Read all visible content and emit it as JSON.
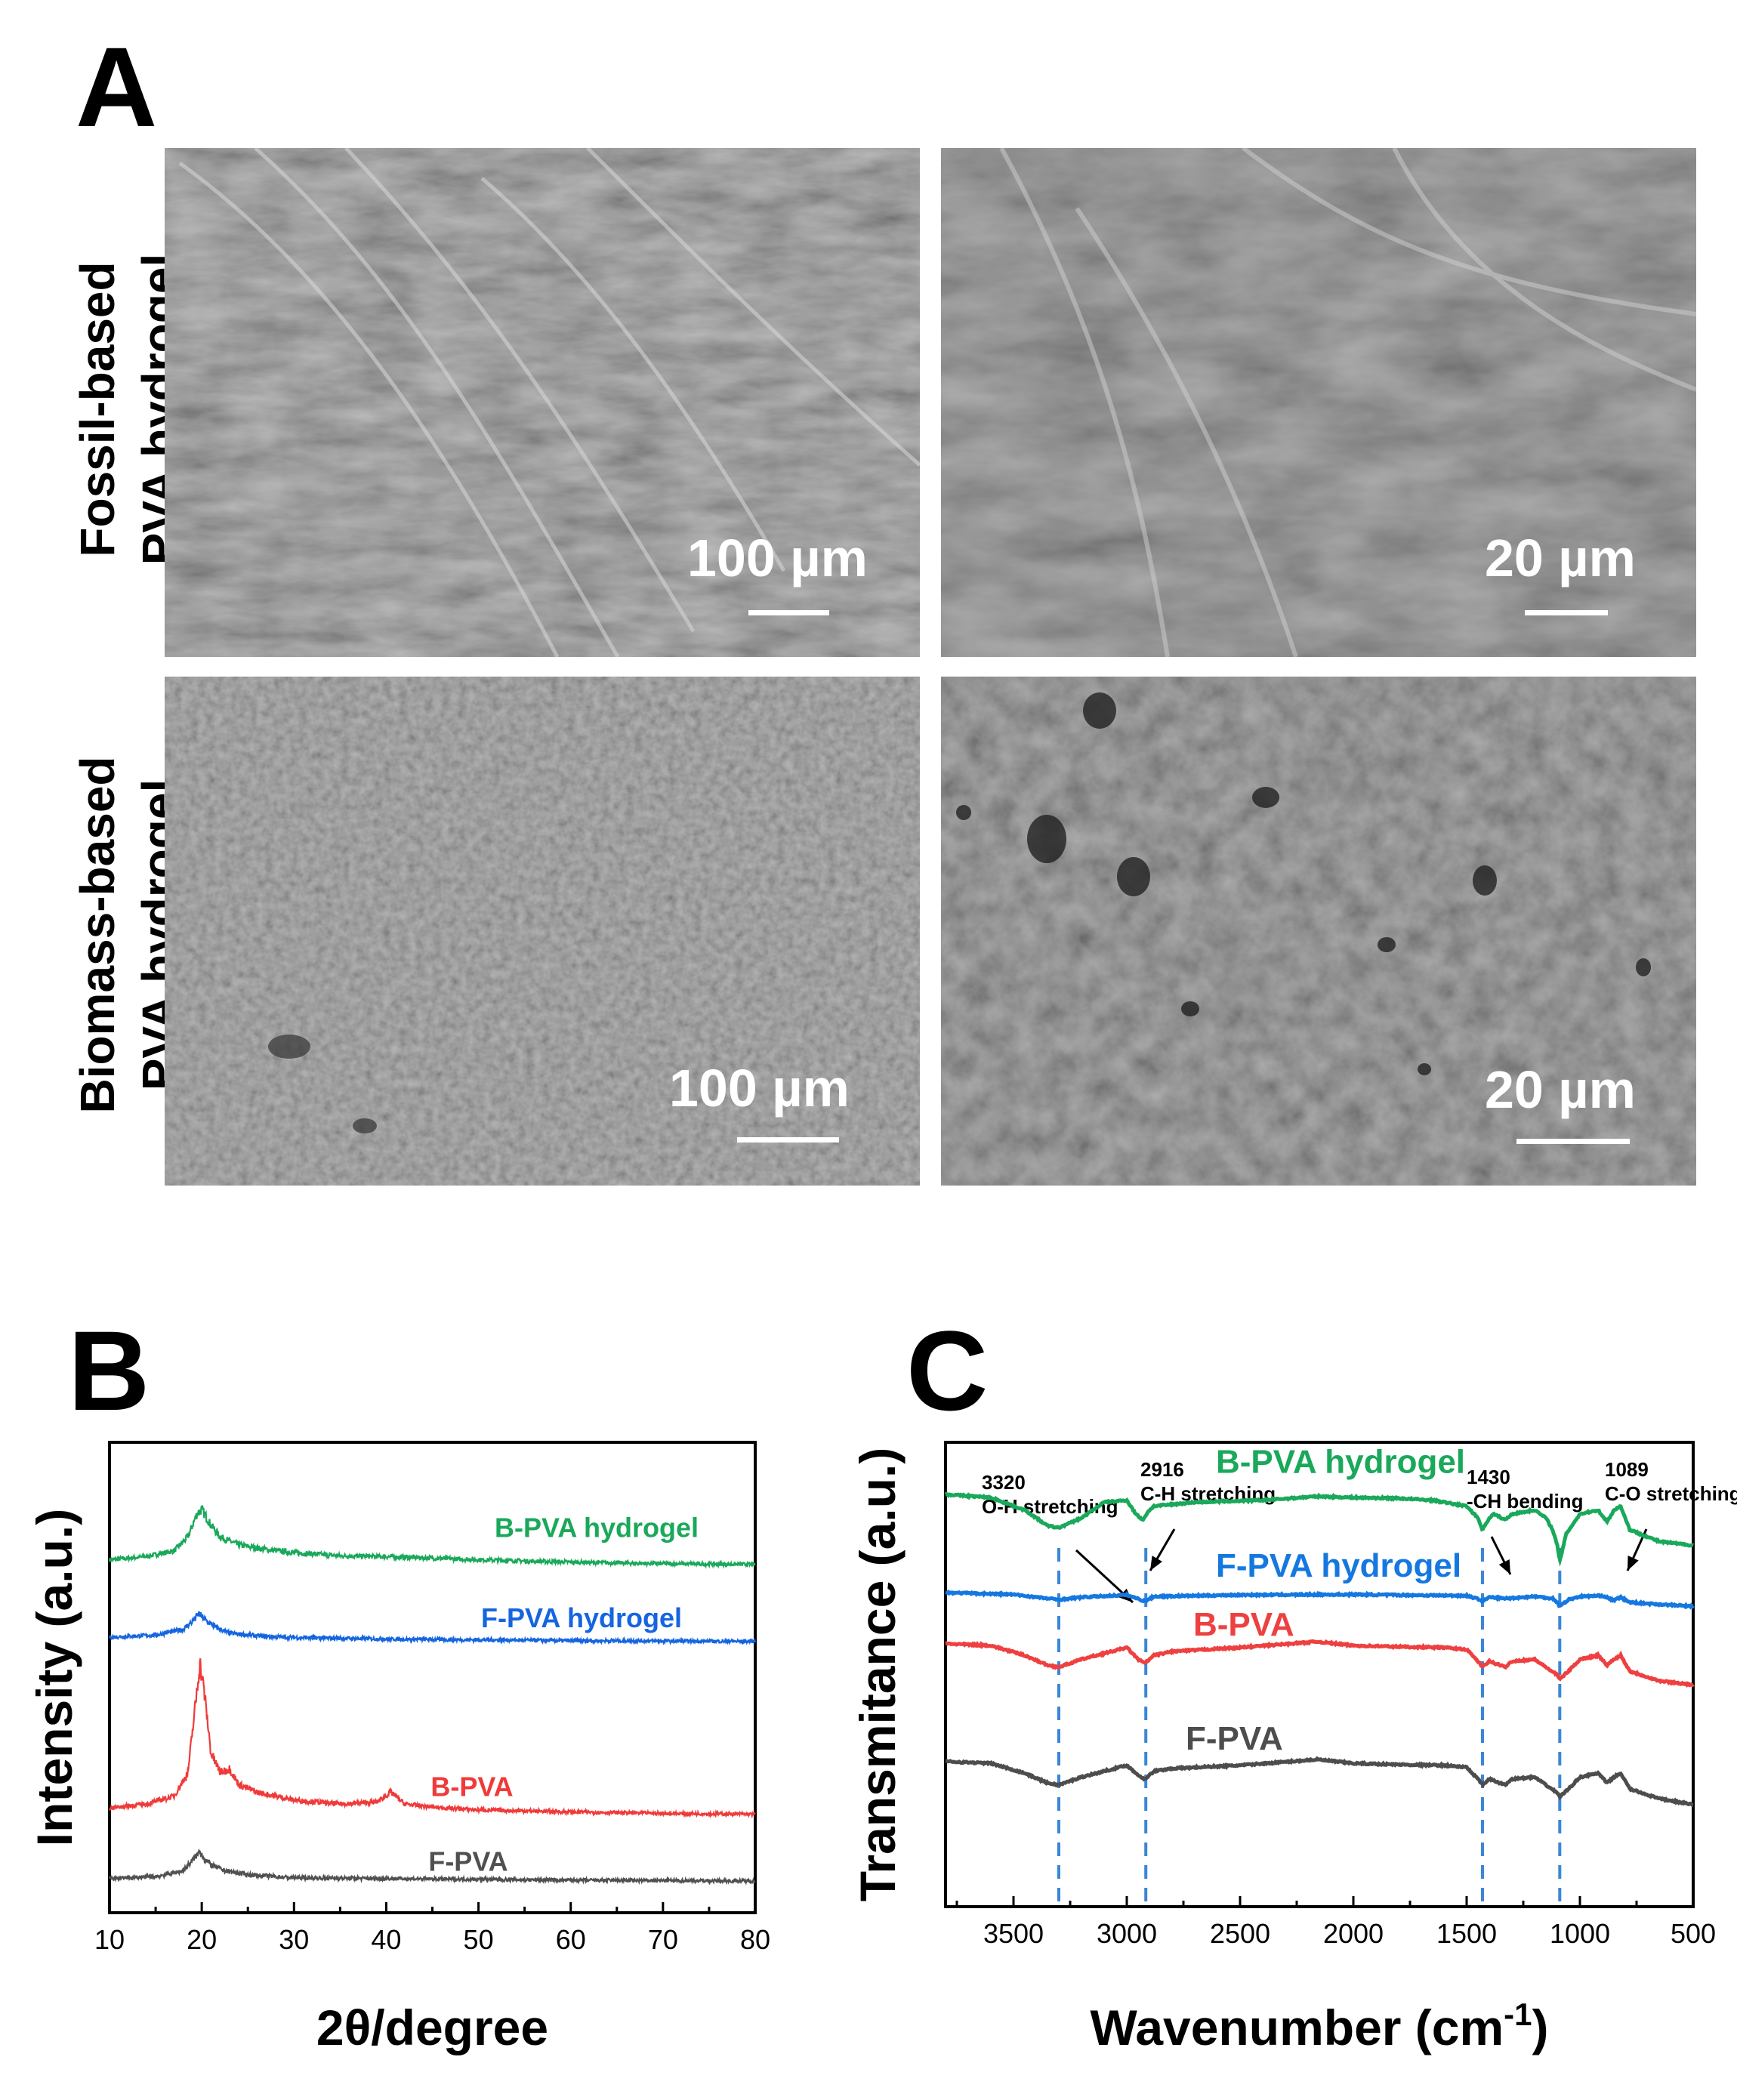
{
  "panel_a": {
    "letter": "A",
    "rows": [
      {
        "label_line1": "Fossil-based",
        "label_line2": "PVA hydrogel"
      },
      {
        "label_line1": "Biomass-based",
        "label_line2": "PVA hydrogel"
      }
    ],
    "images": [
      {
        "scale_label": "100 µm",
        "tone": "#7a7a7a"
      },
      {
        "scale_label": "20 µm",
        "tone": "#6d6d6d"
      },
      {
        "scale_label": "100 µm",
        "tone": "#868686"
      },
      {
        "scale_label": "20 µm",
        "tone": "#6a6a6a"
      }
    ]
  },
  "panel_b": {
    "letter": "B"
  },
  "panel_c": {
    "letter": "C"
  },
  "chart_data": [
    {
      "type": "line",
      "panel": "B",
      "xlabel": "2θ/degree",
      "ylabel": "Intensity (a.u.)",
      "xlim": [
        10,
        80
      ],
      "xticks": [
        10,
        20,
        30,
        40,
        50,
        60,
        70,
        80
      ],
      "grid": false,
      "series": [
        {
          "name": "B-PVA hydrogel",
          "color": "#1aa85a",
          "offset": 0.8,
          "x": [
            10,
            14,
            17,
            18.5,
            19.5,
            20,
            21,
            22,
            24,
            27,
            30,
            35,
            40,
            45,
            50,
            60,
            70,
            80
          ],
          "y": [
            0.022,
            0.03,
            0.045,
            0.08,
            0.14,
            0.15,
            0.11,
            0.08,
            0.06,
            0.048,
            0.04,
            0.032,
            0.03,
            0.026,
            0.022,
            0.016,
            0.012,
            0.01
          ]
        },
        {
          "name": "F-PVA hydrogel",
          "color": "#1565e0",
          "offset": 0.61,
          "x": [
            10,
            15,
            18,
            19,
            19.7,
            20.3,
            21.5,
            23,
            26,
            30,
            40,
            50,
            60,
            70,
            80
          ],
          "y": [
            0.015,
            0.02,
            0.035,
            0.055,
            0.075,
            0.06,
            0.04,
            0.025,
            0.018,
            0.014,
            0.01,
            0.008,
            0.006,
            0.005,
            0.004
          ]
        },
        {
          "name": "B-PVA",
          "color": "#f03a3a",
          "offset": 0.17,
          "x": [
            10,
            14,
            17,
            18.5,
            19.3,
            19.8,
            20.3,
            21,
            22,
            23,
            24,
            26,
            28,
            30,
            35,
            39,
            40.5,
            42,
            45,
            50,
            60,
            70,
            80
          ],
          "y": [
            0.02,
            0.03,
            0.05,
            0.11,
            0.28,
            0.39,
            0.31,
            0.16,
            0.11,
            0.12,
            0.08,
            0.06,
            0.05,
            0.04,
            0.03,
            0.035,
            0.06,
            0.03,
            0.022,
            0.015,
            0.01,
            0.006,
            0.004
          ]
        },
        {
          "name": "F-PVA",
          "color": "#505050",
          "offset": 0.0,
          "x": [
            10,
            15,
            18,
            19.3,
            19.8,
            20.3,
            21,
            22.5,
            25,
            30,
            40,
            50,
            60,
            70,
            80
          ],
          "y": [
            0.01,
            0.015,
            0.03,
            0.065,
            0.08,
            0.06,
            0.045,
            0.03,
            0.02,
            0.012,
            0.01,
            0.008,
            0.006,
            0.005,
            0.004
          ]
        }
      ]
    },
    {
      "type": "line",
      "panel": "C",
      "xlabel": "Wavenumber (cm",
      "xlabel_sup": "-1",
      "xlabel_end": ")",
      "ylabel": "Transmitance (a.u.)",
      "xlim": [
        3800,
        500
      ],
      "xticks": [
        3500,
        3000,
        2500,
        2000,
        1500,
        1000,
        500
      ],
      "grid": false,
      "annotations": [
        {
          "x": 3300,
          "line1": "3320",
          "line2": "O-H stretching"
        },
        {
          "x": 2916,
          "line1": "2916",
          "line2": "C-H stretching"
        },
        {
          "x": 1430,
          "line1": "1430",
          "line2": "-CH bending"
        },
        {
          "x": 1089,
          "line1": "1089",
          "line2": "C-O stretching"
        }
      ],
      "series": [
        {
          "name": "B-PVA hydrogel",
          "color": "#1aa85a",
          "offset": 0.8,
          "x": [
            3800,
            3600,
            3450,
            3350,
            3300,
            3200,
            3100,
            3000,
            2960,
            2930,
            2900,
            2880,
            2700,
            2400,
            2160,
            2000,
            1800,
            1650,
            1500,
            1450,
            1430,
            1400,
            1380,
            1330,
            1300,
            1200,
            1150,
            1120,
            1100,
            1089,
            1060,
            1000,
            920,
            880,
            850,
            820,
            780,
            650,
            500
          ],
          "y": [
            0.0,
            -0.008,
            -0.04,
            -0.08,
            -0.085,
            -0.06,
            -0.02,
            -0.015,
            -0.05,
            -0.065,
            -0.04,
            -0.03,
            -0.02,
            -0.015,
            -0.005,
            -0.008,
            -0.01,
            -0.015,
            -0.03,
            -0.06,
            -0.09,
            -0.06,
            -0.05,
            -0.065,
            -0.05,
            -0.04,
            -0.06,
            -0.09,
            -0.13,
            -0.17,
            -0.1,
            -0.05,
            -0.04,
            -0.07,
            -0.04,
            -0.03,
            -0.09,
            -0.12,
            -0.13
          ]
        },
        {
          "name": "F-PVA hydrogel",
          "color": "#1578e0",
          "offset": 0.55,
          "x": [
            3800,
            3500,
            3350,
            3300,
            3200,
            3000,
            2940,
            2920,
            2880,
            2500,
            2000,
            1500,
            1440,
            1430,
            1400,
            1330,
            1200,
            1120,
            1100,
            1089,
            1050,
            1000,
            900,
            850,
            820,
            780,
            650,
            500
          ],
          "y": [
            0.0,
            -0.005,
            -0.015,
            -0.018,
            -0.012,
            -0.006,
            -0.018,
            -0.022,
            -0.01,
            -0.006,
            -0.005,
            -0.008,
            -0.018,
            -0.022,
            -0.012,
            -0.015,
            -0.01,
            -0.015,
            -0.025,
            -0.035,
            -0.018,
            -0.01,
            -0.008,
            -0.02,
            -0.012,
            -0.025,
            -0.03,
            -0.035
          ]
        },
        {
          "name": "B-PVA",
          "color": "#ee4040",
          "offset": 0.42,
          "x": [
            3800,
            3600,
            3450,
            3350,
            3300,
            3200,
            3000,
            2950,
            2920,
            2880,
            2800,
            2500,
            2160,
            2000,
            1800,
            1600,
            1500,
            1450,
            1430,
            1400,
            1330,
            1300,
            1200,
            1150,
            1100,
            1089,
            1050,
            1000,
            920,
            880,
            850,
            820,
            780,
            650,
            500
          ],
          "y": [
            0.0,
            -0.005,
            -0.03,
            -0.055,
            -0.06,
            -0.04,
            -0.01,
            -0.04,
            -0.05,
            -0.03,
            -0.02,
            -0.01,
            0.005,
            -0.005,
            -0.008,
            -0.01,
            -0.015,
            -0.045,
            -0.06,
            -0.045,
            -0.06,
            -0.045,
            -0.04,
            -0.06,
            -0.08,
            -0.09,
            -0.07,
            -0.04,
            -0.03,
            -0.055,
            -0.04,
            -0.03,
            -0.07,
            -0.095,
            -0.105
          ]
        },
        {
          "name": "F-PVA",
          "color": "#4d4d4d",
          "offset": 0.12,
          "x": [
            3800,
            3600,
            3450,
            3350,
            3300,
            3200,
            3000,
            2950,
            2920,
            2880,
            2800,
            2500,
            2160,
            2000,
            1800,
            1600,
            1500,
            1450,
            1430,
            1400,
            1330,
            1300,
            1200,
            1150,
            1100,
            1089,
            1050,
            1000,
            920,
            880,
            850,
            820,
            780,
            650,
            500
          ],
          "y": [
            0.0,
            -0.005,
            -0.03,
            -0.055,
            -0.06,
            -0.04,
            -0.01,
            -0.035,
            -0.045,
            -0.025,
            -0.018,
            -0.01,
            0.005,
            -0.005,
            -0.008,
            -0.01,
            -0.015,
            -0.045,
            -0.06,
            -0.045,
            -0.06,
            -0.045,
            -0.04,
            -0.06,
            -0.08,
            -0.09,
            -0.07,
            -0.04,
            -0.03,
            -0.055,
            -0.04,
            -0.03,
            -0.07,
            -0.095,
            -0.11
          ]
        }
      ]
    }
  ]
}
